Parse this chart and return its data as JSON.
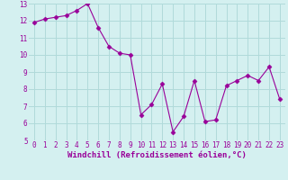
{
  "x": [
    0,
    1,
    2,
    3,
    4,
    5,
    6,
    7,
    8,
    9,
    10,
    11,
    12,
    13,
    14,
    15,
    16,
    17,
    18,
    19,
    20,
    21,
    22,
    23
  ],
  "y": [
    11.9,
    12.1,
    12.2,
    12.3,
    12.6,
    13.0,
    11.6,
    10.5,
    10.1,
    10.0,
    6.5,
    7.1,
    8.3,
    5.5,
    6.4,
    8.5,
    6.1,
    6.2,
    8.2,
    8.5,
    8.8,
    8.5,
    9.3,
    7.4
  ],
  "line_color": "#990099",
  "marker": "D",
  "marker_size": 2.5,
  "bg_color": "#d4f0f0",
  "grid_color": "#b0dada",
  "xlabel": "Windchill (Refroidissement éolien,°C)",
  "tick_color": "#990099",
  "ylim": [
    5,
    13
  ],
  "xlim_min": -0.5,
  "xlim_max": 23.5,
  "yticks": [
    5,
    6,
    7,
    8,
    9,
    10,
    11,
    12,
    13
  ],
  "xticks": [
    0,
    1,
    2,
    3,
    4,
    5,
    6,
    7,
    8,
    9,
    10,
    11,
    12,
    13,
    14,
    15,
    16,
    17,
    18,
    19,
    20,
    21,
    22,
    23
  ],
  "tick_fontsize": 5.5,
  "xlabel_fontsize": 6.5
}
